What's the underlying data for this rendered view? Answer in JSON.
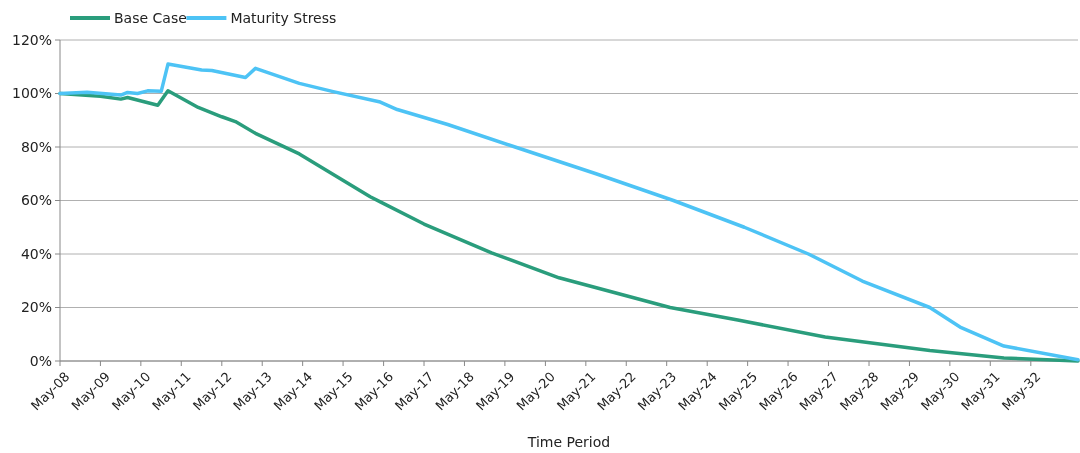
{
  "chart_data": {
    "type": "line",
    "xlabel": "Time Period",
    "legend": "top left",
    "grid": "y",
    "line_style": "solid",
    "marker": "none",
    "xlim": [
      "2008-05",
      "2033-07"
    ],
    "xticks": [
      {
        "value": "2008-05",
        "label": "May-08"
      },
      {
        "value": "2009-05",
        "label": "May-09"
      },
      {
        "value": "2010-05",
        "label": "May-10"
      },
      {
        "value": "2011-05",
        "label": "May-11"
      },
      {
        "value": "2012-05",
        "label": "May-12"
      },
      {
        "value": "2013-05",
        "label": "May-13"
      },
      {
        "value": "2014-05",
        "label": "May-14"
      },
      {
        "value": "2015-05",
        "label": "May-15"
      },
      {
        "value": "2016-05",
        "label": "May-16"
      },
      {
        "value": "2017-05",
        "label": "May-17"
      },
      {
        "value": "2018-05",
        "label": "May-18"
      },
      {
        "value": "2019-05",
        "label": "May-19"
      },
      {
        "value": "2020-05",
        "label": "May-20"
      },
      {
        "value": "2021-05",
        "label": "May-21"
      },
      {
        "value": "2022-05",
        "label": "May-22"
      },
      {
        "value": "2023-05",
        "label": "May-23"
      },
      {
        "value": "2024-05",
        "label": "May-24"
      },
      {
        "value": "2025-05",
        "label": "May-25"
      },
      {
        "value": "2026-05",
        "label": "May-26"
      },
      {
        "value": "2027-05",
        "label": "May-27"
      },
      {
        "value": "2028-05",
        "label": "May-28"
      },
      {
        "value": "2029-05",
        "label": "May-29"
      },
      {
        "value": "2030-05",
        "label": "May-30"
      },
      {
        "value": "2031-05",
        "label": "May-31"
      },
      {
        "value": "2032-05",
        "label": "May-32"
      }
    ],
    "ylim": [
      0,
      120
    ],
    "yticks": [
      {
        "value": 0,
        "label": "0%"
      },
      {
        "value": 20,
        "label": "20%"
      },
      {
        "value": 40,
        "label": "40%"
      },
      {
        "value": 60,
        "label": "60%"
      },
      {
        "value": 80,
        "label": "80%"
      },
      {
        "value": 100,
        "label": "100%"
      },
      {
        "value": 120,
        "label": "120%"
      }
    ],
    "series": [
      {
        "name": "Base Case",
        "color": "#2a9d7c",
        "x": [
          "2008-05",
          "2009-05",
          "2009-11",
          "2010-01",
          "2010-10",
          "2011-01",
          "2011-10",
          "2012-05",
          "2012-09",
          "2013-03",
          "2014-04",
          "2016-01",
          "2016-04",
          "2017-05",
          "2019-01",
          "2020-09",
          "2023-06",
          "2025-02",
          "2027-04",
          "2029-11",
          "2031-09",
          "2033-07"
        ],
        "values": [
          100,
          99,
          97.9,
          98.5,
          95.6,
          101,
          94.8,
          91.3,
          89.5,
          85.1,
          77.4,
          61.4,
          59.5,
          51.2,
          40.4,
          31.1,
          20,
          15.3,
          9,
          3.9,
          1.1,
          0
        ]
      },
      {
        "name": "Maturity Stress",
        "color": "#4dc3f5",
        "x": [
          "2008-05",
          "2009-01",
          "2009-11",
          "2010-01",
          "2010-04",
          "2010-07",
          "2010-11",
          "2011-01",
          "2011-11",
          "2012-02",
          "2012-12",
          "2013-03",
          "2014-04",
          "2015-02",
          "2016-04",
          "2016-09",
          "2017-12",
          "2019-08",
          "2021-08",
          "2023-07",
          "2025-04",
          "2026-11",
          "2028-03",
          "2029-11",
          "2030-08",
          "2031-09",
          "2033-07"
        ],
        "values": [
          100,
          100.5,
          99.4,
          100.4,
          100,
          101,
          100.8,
          111,
          108.8,
          108.6,
          106,
          109.4,
          103.8,
          100.7,
          96.8,
          94,
          88.4,
          80,
          70,
          60,
          50,
          40,
          29.9,
          20,
          12.7,
          5.6,
          0.5
        ]
      }
    ]
  }
}
